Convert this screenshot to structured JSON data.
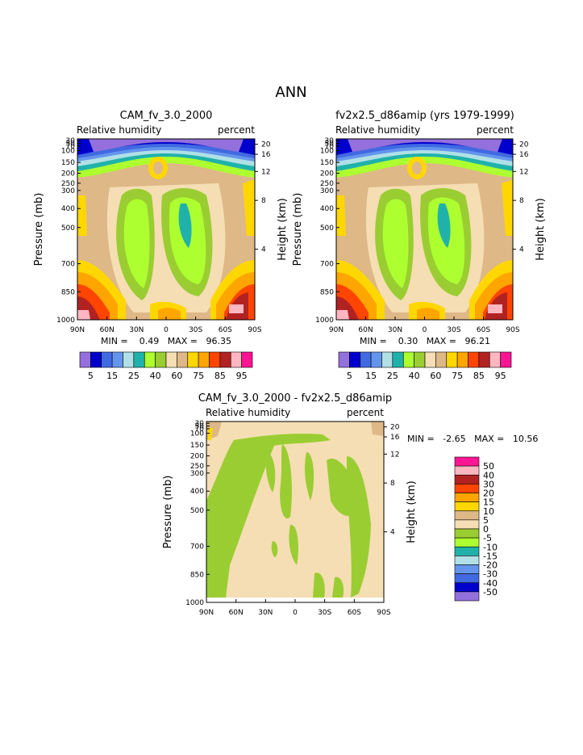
{
  "page": {
    "title": "ANN"
  },
  "colors": {
    "full": [
      "#9370DB",
      "#0000CD",
      "#4169E1",
      "#6495ED",
      "#B0E0E6",
      "#20B2AA",
      "#ADFF2F",
      "#9ACD32",
      "#F5DEB3",
      "#DEB887",
      "#FFD700",
      "#FFA500",
      "#FF4500",
      "#B22222",
      "#FFB6C1",
      "#FF1493"
    ],
    "diff": [
      "#9370DB",
      "#0000CD",
      "#4169E1",
      "#6495ED",
      "#B0E0E6",
      "#20B2AA",
      "#ADFF2F",
      "#9ACD32",
      "#F5DEB3",
      "#DEB887",
      "#FFD700",
      "#FFA500",
      "#FF4500",
      "#B22222",
      "#FFB6C1",
      "#FF1493"
    ]
  },
  "axes": {
    "pressure_label": "Pressure (mb)",
    "height_label": "Height (km)",
    "pressure_ticks": [
      "30",
      "50",
      "70",
      "100",
      "150",
      "200",
      "250",
      "300",
      "400",
      "500",
      "700",
      "850",
      "1000"
    ],
    "height_ticks": [
      "20",
      "16",
      "12",
      "8",
      "4"
    ],
    "lat_ticks": [
      "90N",
      "60N",
      "30N",
      "0",
      "30S",
      "60S",
      "90S"
    ]
  },
  "chart_data": [
    {
      "type": "heatmap",
      "title": "CAM_fv_3.0_2000",
      "left_label": "Relative humidity",
      "right_label": "percent",
      "stats": "MIN =    0.49   MAX =   96.35",
      "min": 0.49,
      "max": 96.35,
      "colorbar_labels": [
        "5",
        "15",
        "25",
        "40",
        "60",
        "75",
        "85",
        "95"
      ]
    },
    {
      "type": "heatmap",
      "title": "fv2x2.5_d86amip (yrs 1979-1999)",
      "left_label": "Relative humidity",
      "right_label": "percent",
      "stats": "MIN =    0.30   MAX =   96.21",
      "min": 0.3,
      "max": 96.21,
      "colorbar_labels": [
        "5",
        "15",
        "25",
        "40",
        "60",
        "75",
        "85",
        "95"
      ]
    },
    {
      "type": "heatmap",
      "title": "CAM_fv_3.0_2000 - fv2x2.5_d86amip",
      "left_label": "Relative humidity",
      "right_label": "percent",
      "stats": "MIN =   -2.65   MAX =   10.56",
      "min": -2.65,
      "max": 10.56,
      "colorbar_labels": [
        "50",
        "40",
        "30",
        "20",
        "15",
        "10",
        "5",
        "0",
        "-5",
        "-10",
        "-15",
        "-20",
        "-30",
        "-40",
        "-50"
      ]
    }
  ]
}
